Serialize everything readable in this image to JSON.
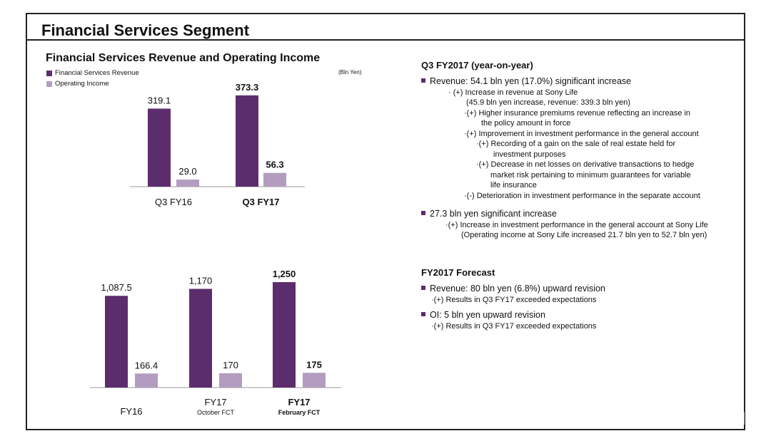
{
  "page": {
    "title": "Financial Services Segment"
  },
  "left": {
    "chart_title": "Financial Services Revenue and Operating Income",
    "legend": [
      {
        "label": "Financial Services Revenue",
        "color": "#5c2d6d"
      },
      {
        "label": "Operating Income",
        "color": "#b49cc0"
      }
    ],
    "unit": "(Bln Yen)"
  },
  "chart_data": [
    {
      "type": "bar",
      "title": "Financial Services Revenue and Operating Income",
      "categories": [
        "Q3 FY16",
        "Q3 FY17"
      ],
      "category_bold": [
        false,
        true
      ],
      "series": [
        {
          "name": "Financial Services Revenue",
          "values": [
            319.1,
            373.3
          ],
          "labels": [
            "319.1",
            "373.3"
          ]
        },
        {
          "name": "Operating Income",
          "values": [
            29.0,
            56.3
          ],
          "labels": [
            "29.0",
            "56.3"
          ]
        }
      ],
      "ylim": [
        0,
        400
      ]
    },
    {
      "type": "bar",
      "categories": [
        "FY16",
        "FY17",
        "FY17"
      ],
      "sublabels": [
        "",
        "October FCT",
        "February FCT"
      ],
      "category_bold": [
        false,
        false,
        true
      ],
      "series": [
        {
          "name": "Financial Services Revenue",
          "values": [
            1087.5,
            1170,
            1250
          ],
          "labels": [
            "1,087.5",
            "1,170",
            "1,250"
          ]
        },
        {
          "name": "Operating Income",
          "values": [
            166.4,
            170,
            175
          ],
          "labels": [
            "166.4",
            "170",
            "175"
          ]
        }
      ],
      "ylim": [
        0,
        1360
      ]
    }
  ],
  "right": {
    "q3": {
      "heading": "Q3 FY2017 (year-on-year)",
      "lines": [
        "Revenue: 54.1 bln yen (17.0%) significant increase",
        "· (+) Increase in revenue at Sony Life",
        "(45.9 bln yen increase, revenue: 339.3 bln yen)",
        "·(+) Higher insurance premiums revenue reflecting an increase in",
        "the policy amount in force",
        "·(+) Improvement in investment performance in the general account",
        "·(+) Recording  of a gain on the sale of real estate held for",
        "investment purposes",
        "·(+) Decrease in net losses on derivative transactions to hedge",
        "market risk pertaining to minimum guarantees for variable",
        "life insurance",
        "·(-) Deterioration in investment performance in the separate account",
        "27.3 bln yen significant increase",
        "·(+) Increase in investment performance in the general account at Sony Life",
        "(Operating income at Sony Life increased 21.7 bln yen to 52.7 bln yen)"
      ]
    },
    "forecast": {
      "heading": "FY2017 Forecast",
      "lines": [
        "Revenue: 80 bln yen (6.8%) upward revision",
        "·(+) Results in Q3 FY17 exceeded expectations",
        "OI: 5 bln yen upward revision",
        "·(+) Results in Q3 FY17 exceeded expectations"
      ]
    }
  }
}
